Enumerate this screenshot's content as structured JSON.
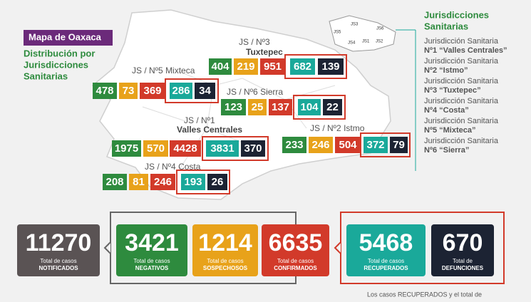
{
  "header": {
    "title": "Mapa de Oaxaca",
    "subtitle": [
      "Distribución por",
      "Jurisdicciones",
      "Sanitarias"
    ]
  },
  "jurisdictions": [
    {
      "label_lines": [
        "JS / Nº3",
        "Tuxtepec"
      ],
      "values": [
        404,
        219,
        951,
        682,
        139
      ]
    },
    {
      "label_lines": [
        "JS / Nº5 Mixteca"
      ],
      "values": [
        478,
        73,
        369,
        286,
        34
      ]
    },
    {
      "label_lines": [
        "JS / Nº6 Sierra"
      ],
      "values": [
        123,
        25,
        137,
        104,
        22
      ]
    },
    {
      "label_lines": [
        "JS / Nº1",
        "Valles Centrales"
      ],
      "values": [
        1975,
        570,
        4428,
        3831,
        370
      ]
    },
    {
      "label_lines": [
        "JS / Nº2 Istmo"
      ],
      "values": [
        233,
        246,
        504,
        372,
        79
      ]
    },
    {
      "label_lines": [
        "JS / Nº4 Costa"
      ],
      "values": [
        208,
        81,
        246,
        193,
        26
      ]
    }
  ],
  "legend": {
    "title": [
      "Jurisdicciones",
      "Sanitarias"
    ],
    "map_labels": [
      "JS5",
      "JS3",
      "JS1",
      "JS6",
      "JS2",
      "JS4"
    ],
    "items": [
      {
        "line1": "Jurisdicción Sanitaria",
        "line2": "Nº1 “Valles Centrales”"
      },
      {
        "line1": "Jurisdicción Sanitaria",
        "line2": "Nº2 “Istmo”"
      },
      {
        "line1": "Jurisdicción Sanitaria",
        "line2": "Nº3 “Tuxtepec”"
      },
      {
        "line1": "Jurisdicción Sanitaria",
        "line2": "Nº4 “Costa”"
      },
      {
        "line1": "Jurisdicción Sanitaria",
        "line2": "Nº5 “Mixteca”"
      },
      {
        "line1": "Jurisdicción Sanitaria",
        "line2": "Nº6 “Sierra”"
      }
    ]
  },
  "totals": [
    {
      "value": 11270,
      "line1": "Total de casos",
      "line2": "NOTIFICADOS"
    },
    {
      "value": 3421,
      "line1": "Total de casos",
      "line2": "NEGATIVOS"
    },
    {
      "value": 1214,
      "line1": "Total de casos",
      "line2": "SOSPECHOSOS"
    },
    {
      "value": 6635,
      "line1": "Total de casos",
      "line2": "CONFIRMADOS"
    },
    {
      "value": 5468,
      "line1": "Total de casos",
      "line2": "RECUPERADOS"
    },
    {
      "value": 670,
      "line1": "Total de",
      "line2": "DEFUNCIONES"
    }
  ],
  "footer": "Los casos RECUPERADOS y el total de"
}
